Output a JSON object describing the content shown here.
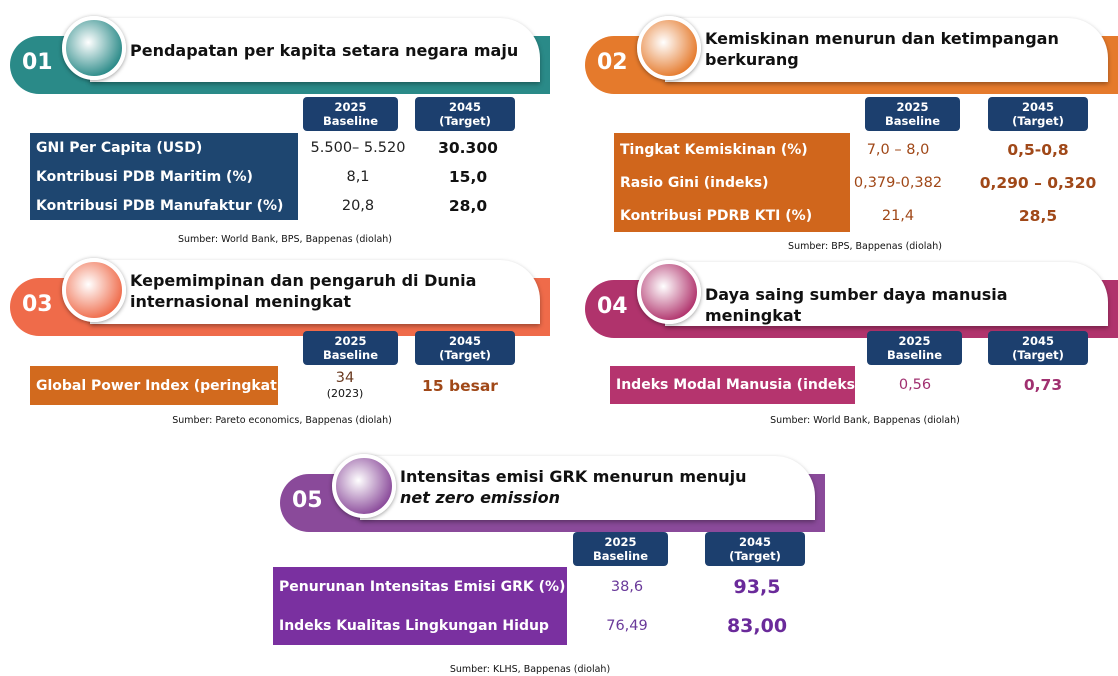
{
  "panels": [
    {
      "number": "01",
      "title_lines": [
        "Pendapatan per kapita setara negara maju"
      ],
      "columns": [
        {
          "year": "2025",
          "label": "Baseline"
        },
        {
          "year": "2045",
          "label": "(Target)"
        }
      ],
      "rows": [
        {
          "label": "GNI Per Capita (USD)",
          "baseline": "5.500– 5.520",
          "target": "30.300"
        },
        {
          "label": "Kontribusi PDB Maritim (%)",
          "baseline": "8,1",
          "target": "15,0"
        },
        {
          "label": "Kontribusi PDB Manufaktur (%)",
          "baseline": "20,8",
          "target": "28,0"
        }
      ],
      "source": "Sumber: World Bank, BPS, Bappenas (diolah)"
    },
    {
      "number": "02",
      "title_lines": [
        "Kemiskinan menurun dan ketimpangan",
        "berkurang"
      ],
      "columns": [
        {
          "year": "2025",
          "label": "Baseline"
        },
        {
          "year": "2045",
          "label": "(Target)"
        }
      ],
      "rows": [
        {
          "label": "Tingkat Kemiskinan (%)",
          "baseline": "7,0 – 8,0",
          "target": "0,5-0,8"
        },
        {
          "label": "Rasio Gini (indeks)",
          "baseline": "0,379-0,382",
          "target": "0,290 – 0,320"
        },
        {
          "label": "Kontribusi PDRB KTI (%)",
          "baseline": "21,4",
          "target": "28,5"
        }
      ],
      "source": "Sumber: BPS, Bappenas (diolah)"
    },
    {
      "number": "03",
      "title_lines": [
        "Kepemimpinan dan pengaruh di Dunia",
        "internasional meningkat"
      ],
      "columns": [
        {
          "year": "2025",
          "label": "Baseline"
        },
        {
          "year": "2045",
          "label": "(Target)"
        }
      ],
      "rows": [
        {
          "label": "Global Power Index (peringkat)",
          "baseline": "34",
          "baseline_note": "(2023)",
          "target": "15 besar"
        }
      ],
      "source": "Sumber: Pareto economics,  Bappenas (diolah)"
    },
    {
      "number": "04",
      "title_lines": [
        "Daya saing sumber daya manusia meningkat"
      ],
      "columns": [
        {
          "year": "2025",
          "label": "Baseline"
        },
        {
          "year": "2045",
          "label": "(Target)"
        }
      ],
      "rows": [
        {
          "label": "Indeks Modal Manusia (indeks)",
          "baseline": "0,56",
          "target": "0,73"
        }
      ],
      "source": "Sumber: World Bank, Bappenas (diolah)"
    },
    {
      "number": "05",
      "title_lines": [
        "Intensitas emisi GRK menurun menuju"
      ],
      "title_italic": "net zero emission",
      "columns": [
        {
          "year": "2025",
          "label": "Baseline"
        },
        {
          "year": "2045",
          "label": "(Target)"
        }
      ],
      "rows": [
        {
          "label": "Penurunan Intensitas Emisi GRK (%)",
          "baseline": "38,6",
          "target": "93,5"
        },
        {
          "label": "Indeks Kualitas Lingkungan Hidup",
          "baseline": "76,49",
          "target": "83,00"
        }
      ],
      "source": "Sumber: KLHS, Bappenas (diolah)"
    }
  ]
}
